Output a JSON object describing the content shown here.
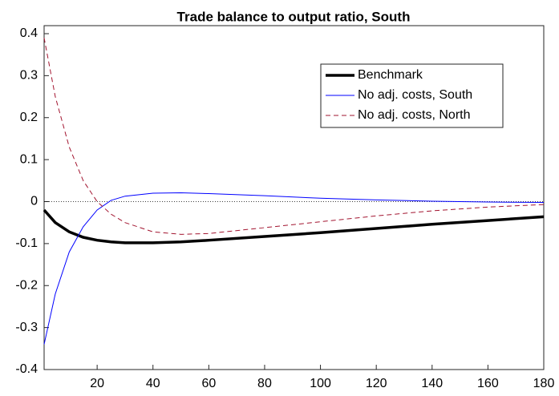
{
  "chart_data": {
    "type": "line",
    "title": "Trade balance to output ratio, South",
    "x": [
      1,
      5,
      10,
      15,
      20,
      25,
      30,
      40,
      50,
      60,
      80,
      100,
      120,
      140,
      160,
      180
    ],
    "series": [
      {
        "name": "Benchmark",
        "color": "#000000",
        "style": "solid",
        "width": 3.5,
        "values": [
          -0.02,
          -0.05,
          -0.072,
          -0.085,
          -0.092,
          -0.096,
          -0.098,
          -0.098,
          -0.096,
          -0.092,
          -0.083,
          -0.074,
          -0.064,
          -0.054,
          -0.045,
          -0.036
        ]
      },
      {
        "name": "No adj. costs, South",
        "color": "#0000ff",
        "style": "solid",
        "width": 1,
        "values": [
          -0.34,
          -0.22,
          -0.12,
          -0.06,
          -0.02,
          0.003,
          0.013,
          0.02,
          0.021,
          0.019,
          0.014,
          0.008,
          0.004,
          0.001,
          -0.001,
          -0.002
        ]
      },
      {
        "name": "No adj. costs, North",
        "color": "#a2142f",
        "style": "dashed",
        "width": 1,
        "values": [
          0.39,
          0.25,
          0.13,
          0.05,
          0.0,
          -0.03,
          -0.05,
          -0.072,
          -0.078,
          -0.076,
          -0.062,
          -0.048,
          -0.034,
          -0.022,
          -0.013,
          -0.007
        ]
      }
    ],
    "reference_line": 0,
    "xlim": [
      1,
      180
    ],
    "xticks": [
      20,
      40,
      60,
      80,
      100,
      120,
      140,
      160,
      180
    ],
    "ylim": [
      -0.4,
      0.4
    ],
    "yticks": [
      -0.4,
      -0.3,
      -0.2,
      -0.1,
      0,
      0.1,
      0.2,
      0.3,
      0.4
    ],
    "legend": "top-right"
  }
}
